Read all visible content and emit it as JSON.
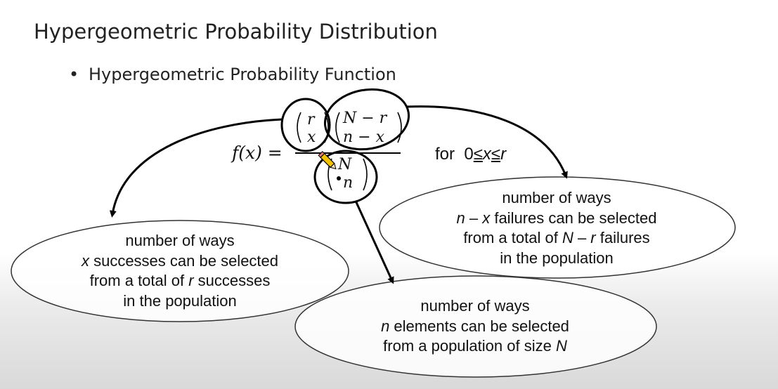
{
  "title": "Hypergeometric Probability Distribution",
  "bullet": "Hypergeometric Probability Function",
  "formula": {
    "lhs": "f(x) =",
    "top_left": [
      "r",
      "x"
    ],
    "top_right": [
      "N − r",
      "n − x"
    ],
    "bottom": [
      "N",
      "n"
    ],
    "condition_for": "for",
    "condition": [
      "0",
      "≤",
      "x",
      "≤",
      "r"
    ]
  },
  "ellipses": {
    "left": {
      "line1": "number of ways",
      "line2_var": "x",
      "line2_rest": " successes can be selected",
      "line3_pre": "from a total of ",
      "line3_var": "r",
      "line3_post": " successes",
      "line4": "in the population"
    },
    "right": {
      "line1": "number of ways",
      "line2_var": "n",
      "line2_mid": " – ",
      "line2_var2": "x",
      "line2_rest": " failures can be selected",
      "line3_pre": "from a total of ",
      "line3_var": "N",
      "line3_mid": " – ",
      "line3_var2": "r",
      "line3_post": " failures",
      "line4": "in the population"
    },
    "bottom": {
      "line1": "number of ways",
      "line2_var": "n",
      "line2_rest": " elements can be selected",
      "line3_pre": "from a population of size ",
      "line3_var": "N"
    }
  },
  "icons": {
    "cursor": "pencil-cursor-icon"
  }
}
